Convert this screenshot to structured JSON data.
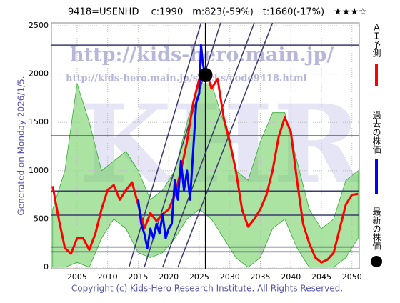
{
  "chart_data": {
    "type": "line",
    "title": "9418=USENHD　 c:1990　m:823(-59%)　t:1660(-17%)　★★★☆",
    "left_note": "Generated on Monday 2026/1/5.",
    "copyright": "Copyright (c) Kids-Hero Research Institute. All Rights Reserved.",
    "watermarks": [
      "http://kids-hero.main.jp/",
      "http://kids-hero.main.jp/stocks/code9418.html",
      "KHRI"
    ],
    "xlim": [
      2000.8,
      2051.2
    ],
    "ylim": [
      -15,
      2530
    ],
    "xticks": [
      2005,
      2010,
      2015,
      2020,
      2025,
      2030,
      2035,
      2040,
      2045,
      2050
    ],
    "yticks": [
      0,
      500,
      1000,
      1500,
      2000,
      2500
    ],
    "grid": true,
    "hlines": [
      2300,
      1360,
      790,
      540,
      210,
      160
    ],
    "hline_color": "#3a3a70",
    "vline": 2026,
    "trendlines": [
      {
        "x": [
          2013.5,
          2025.3
        ],
        "y": [
          0,
          2530
        ]
      },
      {
        "x": [
          2016,
          2028.5
        ],
        "y": [
          0,
          2530
        ]
      },
      {
        "x": [
          2019,
          2034
        ],
        "y": [
          0,
          2530
        ]
      },
      {
        "x": [
          2021.5,
          2037
        ],
        "y": [
          0,
          2530
        ]
      }
    ],
    "bands": [
      {
        "color": "#66cc55",
        "x": [
          2001,
          2003,
          2005,
          2007,
          2009,
          2011,
          2013,
          2015,
          2017,
          2019,
          2021,
          2023,
          2025,
          2027,
          2029,
          2031,
          2033,
          2035,
          2037,
          2039,
          2041,
          2043,
          2045,
          2047,
          2049,
          2051
        ],
        "upper": [
          600,
          1000,
          1900,
          1500,
          1000,
          1100,
          1200,
          1000,
          700,
          800,
          1000,
          1500,
          1900,
          1900,
          1500,
          1000,
          900,
          1300,
          1600,
          1600,
          1100,
          600,
          400,
          500,
          900,
          1000
        ],
        "lower": [
          0,
          0,
          50,
          0,
          300,
          500,
          400,
          150,
          100,
          150,
          300,
          500,
          600,
          500,
          300,
          100,
          0,
          100,
          400,
          500,
          200,
          0,
          0,
          0,
          100,
          300
        ]
      }
    ],
    "series": [
      {
        "name": "ＡＩ予測",
        "color": "#ff0000",
        "x": [
          2001,
          2002,
          2003,
          2004,
          2005,
          2006,
          2007,
          2008,
          2009,
          2010,
          2011,
          2012,
          2013,
          2014,
          2015,
          2016,
          2017,
          2018,
          2019,
          2020,
          2021,
          2022,
          2023,
          2024,
          2025,
          2026,
          2027,
          2028,
          2029,
          2030,
          2031,
          2032,
          2033,
          2034,
          2035,
          2036,
          2037,
          2038,
          2039,
          2040,
          2041,
          2042,
          2043,
          2044,
          2045,
          2046,
          2047,
          2048,
          2049,
          2050,
          2051
        ],
        "values": [
          840,
          500,
          200,
          140,
          300,
          300,
          180,
          350,
          600,
          800,
          850,
          700,
          800,
          880,
          650,
          400,
          560,
          480,
          550,
          600,
          750,
          1000,
          1300,
          1700,
          1950,
          2050,
          1850,
          1950,
          1550,
          1300,
          1000,
          600,
          420,
          500,
          600,
          750,
          1000,
          1350,
          1550,
          1400,
          900,
          450,
          250,
          100,
          50,
          80,
          150,
          400,
          650,
          750,
          760
        ]
      },
      {
        "name": "過去の株価",
        "color": "#0000ff",
        "x": [
          2015,
          2015.5,
          2016,
          2016.5,
          2017,
          2017.5,
          2018,
          2018.5,
          2019,
          2019.5,
          2020,
          2020.5,
          2021,
          2021.5,
          2022,
          2022.5,
          2023,
          2023.5,
          2024,
          2024.5,
          2025,
          2025.3,
          2025.6,
          2026
        ],
        "values": [
          700,
          450,
          350,
          200,
          400,
          300,
          450,
          350,
          550,
          300,
          400,
          450,
          900,
          700,
          1100,
          800,
          1000,
          700,
          1200,
          1700,
          1800,
          2300,
          2100,
          1990
        ]
      }
    ],
    "latest": {
      "name": "最新の株価",
      "x": 2026,
      "value": 1990,
      "color": "#000000"
    }
  }
}
